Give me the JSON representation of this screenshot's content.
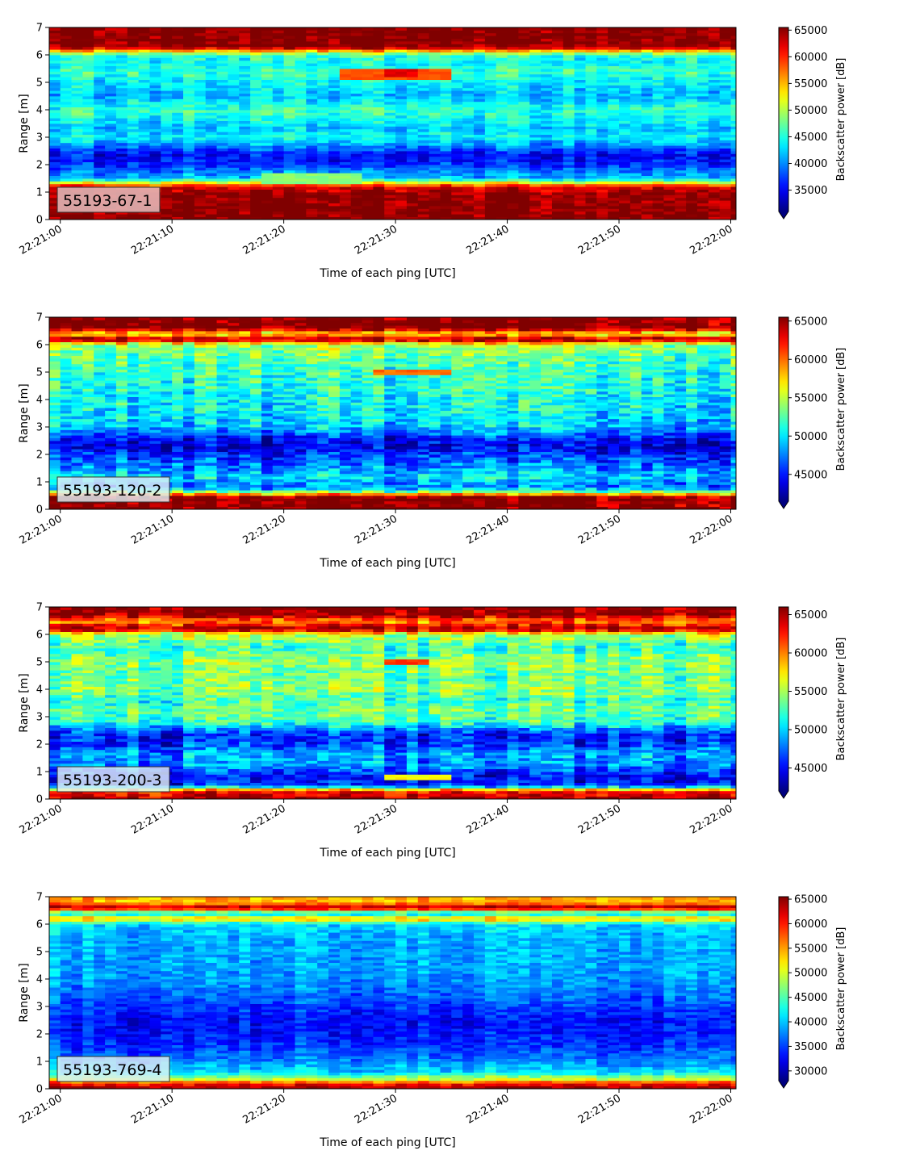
{
  "x_ticks": [
    "22:21:00",
    "22:21:10",
    "22:21:20",
    "22:21:30",
    "22:21:40",
    "22:21:50",
    "22:22:00"
  ],
  "y_ticks": [
    "0",
    "1",
    "2",
    "3",
    "4",
    "5",
    "6",
    "7"
  ],
  "chart_data": [
    {
      "type": "heatmap",
      "sensor_id": "55193-67-1",
      "xlabel": "Time of each ping [UTC]",
      "ylabel": "Range [m]",
      "colorbar_label": "Backscatter power [dB]",
      "colormap": "jet",
      "x_range": [
        "22:21:00",
        "22:22:00"
      ],
      "ylim": [
        0,
        7
      ],
      "clim": [
        31000,
        65500
      ],
      "colorbar_ticks": [
        "35000",
        "40000",
        "45000",
        "50000",
        "55000",
        "60000",
        "65000"
      ],
      "profile": [
        {
          "range": 0.0,
          "power": 65500
        },
        {
          "range": 0.3,
          "power": 65500
        },
        {
          "range": 0.6,
          "power": 65000
        },
        {
          "range": 0.9,
          "power": 65000
        },
        {
          "range": 1.2,
          "power": 62000
        },
        {
          "range": 1.5,
          "power": 42000
        },
        {
          "range": 1.8,
          "power": 39000
        },
        {
          "range": 2.1,
          "power": 36000
        },
        {
          "range": 2.4,
          "power": 35500
        },
        {
          "range": 2.7,
          "power": 40000
        },
        {
          "range": 3.0,
          "power": 44000
        },
        {
          "range": 3.3,
          "power": 42000
        },
        {
          "range": 3.6,
          "power": 43500
        },
        {
          "range": 3.9,
          "power": 45500
        },
        {
          "range": 4.2,
          "power": 44500
        },
        {
          "range": 4.5,
          "power": 41500
        },
        {
          "range": 4.8,
          "power": 43000
        },
        {
          "range": 5.1,
          "power": 44000
        },
        {
          "range": 5.4,
          "power": 46000
        },
        {
          "range": 5.7,
          "power": 44000
        },
        {
          "range": 6.0,
          "power": 45500
        },
        {
          "range": 6.3,
          "power": 65500
        },
        {
          "range": 7.0,
          "power": 65500
        }
      ],
      "features": [
        {
          "t0": 25,
          "t1": 35,
          "r0": 5.15,
          "r1": 5.5,
          "power": 58500
        },
        {
          "t0": 29,
          "t1": 32,
          "r0": 5.2,
          "r1": 5.45,
          "power": 62000
        },
        {
          "t0": 18,
          "t1": 27,
          "r0": 1.3,
          "r1": 1.7,
          "power": 48500
        }
      ]
    },
    {
      "type": "heatmap",
      "sensor_id": "55193-120-2",
      "xlabel": "Time of each ping [UTC]",
      "ylabel": "Range [m]",
      "colorbar_label": "Backscatter power [dB]",
      "colormap": "jet",
      "x_range": [
        "22:21:00",
        "22:22:00"
      ],
      "ylim": [
        0,
        7
      ],
      "clim": [
        41500,
        65500
      ],
      "colorbar_ticks": [
        "45000",
        "50000",
        "55000",
        "60000",
        "65000"
      ],
      "profile": [
        {
          "range": 0.0,
          "power": 65500
        },
        {
          "range": 0.45,
          "power": 65000
        },
        {
          "range": 0.6,
          "power": 55000
        },
        {
          "range": 0.8,
          "power": 47000
        },
        {
          "range": 1.2,
          "power": 49500
        },
        {
          "range": 1.6,
          "power": 47000
        },
        {
          "range": 2.0,
          "power": 45500
        },
        {
          "range": 2.3,
          "power": 43500
        },
        {
          "range": 2.6,
          "power": 45000
        },
        {
          "range": 3.0,
          "power": 49000
        },
        {
          "range": 3.5,
          "power": 50000
        },
        {
          "range": 4.0,
          "power": 50500
        },
        {
          "range": 4.5,
          "power": 51000
        },
        {
          "range": 5.0,
          "power": 51500
        },
        {
          "range": 5.5,
          "power": 52500
        },
        {
          "range": 6.0,
          "power": 54000
        },
        {
          "range": 6.2,
          "power": 65500
        },
        {
          "range": 6.4,
          "power": 56000
        },
        {
          "range": 6.6,
          "power": 65500
        },
        {
          "range": 7.0,
          "power": 65500
        }
      ],
      "features": [
        {
          "t0": 28,
          "t1": 35,
          "r0": 4.95,
          "r1": 5.1,
          "power": 60000
        }
      ]
    },
    {
      "type": "heatmap",
      "sensor_id": "55193-200-3",
      "xlabel": "Time of each ping [UTC]",
      "ylabel": "Range [m]",
      "colorbar_label": "Backscatter power [dB]",
      "colormap": "jet",
      "x_range": [
        "22:21:00",
        "22:22:00"
      ],
      "ylim": [
        0,
        7
      ],
      "clim": [
        42000,
        66000
      ],
      "colorbar_ticks": [
        "45000",
        "50000",
        "55000",
        "60000",
        "65000"
      ],
      "profile": [
        {
          "range": 0.0,
          "power": 65500
        },
        {
          "range": 0.3,
          "power": 62000
        },
        {
          "range": 0.5,
          "power": 46000
        },
        {
          "range": 0.8,
          "power": 44500
        },
        {
          "range": 1.2,
          "power": 48000
        },
        {
          "range": 1.6,
          "power": 49000
        },
        {
          "range": 2.0,
          "power": 46000
        },
        {
          "range": 2.4,
          "power": 45500
        },
        {
          "range": 2.8,
          "power": 52000
        },
        {
          "range": 3.2,
          "power": 53500
        },
        {
          "range": 3.6,
          "power": 52000
        },
        {
          "range": 4.0,
          "power": 54000
        },
        {
          "range": 4.5,
          "power": 53000
        },
        {
          "range": 5.0,
          "power": 54500
        },
        {
          "range": 5.5,
          "power": 52000
        },
        {
          "range": 6.0,
          "power": 55000
        },
        {
          "range": 6.2,
          "power": 65500
        },
        {
          "range": 6.5,
          "power": 59000
        },
        {
          "range": 6.7,
          "power": 65500
        },
        {
          "range": 7.0,
          "power": 65500
        }
      ],
      "features": [
        {
          "t0": 29,
          "t1": 33,
          "r0": 4.95,
          "r1": 5.1,
          "power": 62000
        },
        {
          "t0": 29,
          "t1": 35,
          "r0": 0.75,
          "r1": 0.9,
          "power": 57000
        }
      ]
    },
    {
      "type": "heatmap",
      "sensor_id": "55193-769-4",
      "xlabel": "Time of each ping [UTC]",
      "ylabel": "Range [m]",
      "colorbar_label": "Backscatter power [dB]",
      "colormap": "jet",
      "x_range": [
        "22:21:00",
        "22:22:00"
      ],
      "ylim": [
        0,
        7
      ],
      "clim": [
        28000,
        65500
      ],
      "colorbar_ticks": [
        "30000",
        "35000",
        "40000",
        "45000",
        "50000",
        "55000",
        "60000",
        "65000"
      ],
      "profile": [
        {
          "range": 0.0,
          "power": 65500
        },
        {
          "range": 0.2,
          "power": 60000
        },
        {
          "range": 0.35,
          "power": 50000
        },
        {
          "range": 0.6,
          "power": 41000
        },
        {
          "range": 1.0,
          "power": 38000
        },
        {
          "range": 1.5,
          "power": 35000
        },
        {
          "range": 2.0,
          "power": 33500
        },
        {
          "range": 2.5,
          "power": 33000
        },
        {
          "range": 3.0,
          "power": 35000
        },
        {
          "range": 3.5,
          "power": 37000
        },
        {
          "range": 4.0,
          "power": 38500
        },
        {
          "range": 4.5,
          "power": 39000
        },
        {
          "range": 5.0,
          "power": 39000
        },
        {
          "range": 5.5,
          "power": 39500
        },
        {
          "range": 6.0,
          "power": 41000
        },
        {
          "range": 6.2,
          "power": 55000
        },
        {
          "range": 6.4,
          "power": 40000
        },
        {
          "range": 6.6,
          "power": 65500
        },
        {
          "range": 6.8,
          "power": 54000
        },
        {
          "range": 7.0,
          "power": 55000
        }
      ],
      "features": []
    }
  ]
}
